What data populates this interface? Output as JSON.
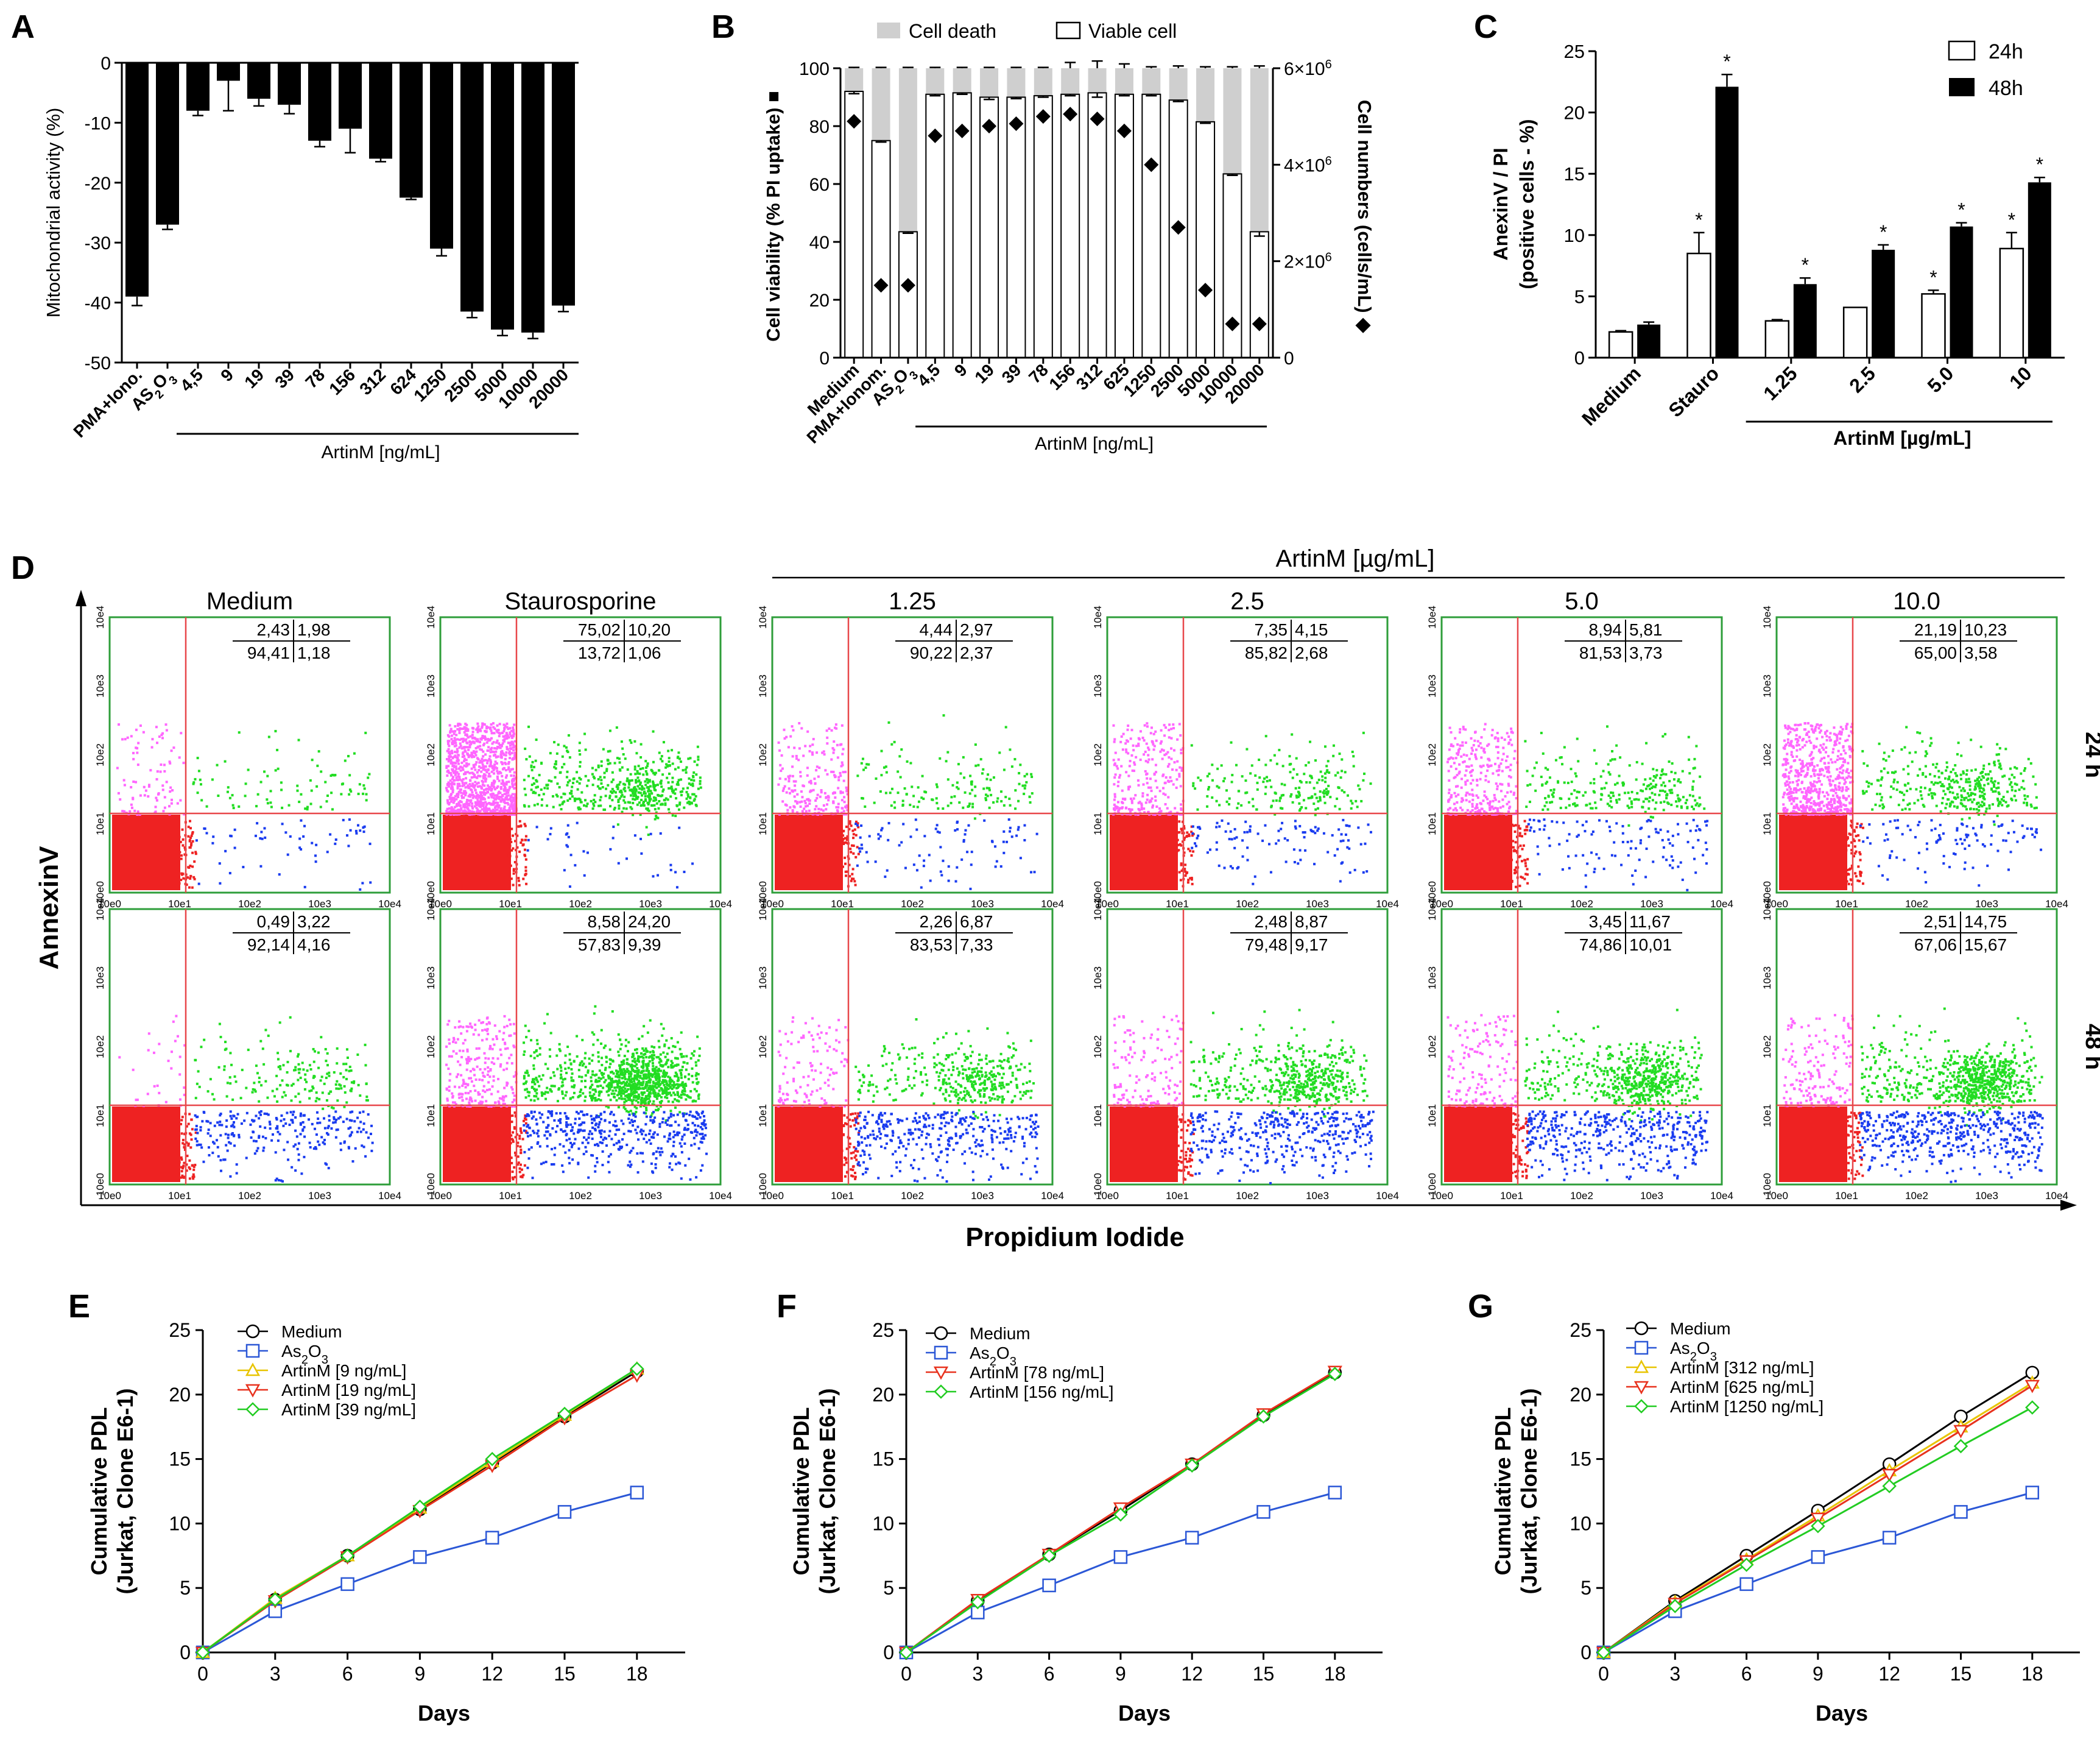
{
  "colors": {
    "black": "#000000",
    "grey": "#cfcfcf",
    "green_frame": "#2e9e3a",
    "red_gate": "#e8474a",
    "pink": "#ff66ff",
    "green_dots": "#22dd22",
    "blue_dots": "#1a3cf0",
    "red_dots": "#ee2222",
    "series_medium": "#000000",
    "series_as2o3": "#2b57d6",
    "series_1": "#e8c400",
    "series_2": "#e8321e",
    "series_3": "#22cc22"
  },
  "panels": {
    "A": "A",
    "B": "B",
    "C": "C",
    "D": "D",
    "E": "E",
    "F": "F",
    "G": "G"
  },
  "chart_data": [
    {
      "id": "A",
      "type": "bar",
      "ylabel": "Mitochondrial activity (%)",
      "ylim": [
        -50,
        0
      ],
      "yticks": [
        0,
        -10,
        -20,
        -30,
        -40,
        -50
      ],
      "categories": [
        "PMA+Iono.",
        "AS2O3",
        "4,5",
        "9",
        "19",
        "39",
        "78",
        "156",
        "312",
        "624",
        "1250",
        "2500",
        "5000",
        "10000",
        "20000"
      ],
      "category_as2o3": {
        "base": "AS",
        "sub": "2",
        "mid": "O",
        "sub2": "3"
      },
      "values": [
        -39,
        -27,
        -8,
        -3,
        -6,
        -7,
        -13,
        -11,
        -16,
        -22.5,
        -31,
        -41.5,
        -44.5,
        -45,
        -40.5
      ],
      "errors": [
        1.5,
        0.8,
        0.8,
        5,
        1.2,
        1.5,
        1,
        4,
        0.5,
        0.3,
        1.2,
        1,
        1,
        1,
        1
      ],
      "group_label": "ArtinM [ng/mL]"
    },
    {
      "id": "B",
      "type": "bar",
      "legend": [
        "Cell death",
        "Viable cell"
      ],
      "ylabel_left": "Cell viability (% PI uptake)",
      "ylabel_left_marker": "■",
      "ylabel_right": "Cell numbers (cells/mL)",
      "ylabel_right_marker": "◆",
      "ylim_left": [
        0,
        100
      ],
      "yticks_left": [
        0,
        20,
        40,
        60,
        80,
        100
      ],
      "ylim_right": [
        0,
        6000000
      ],
      "yticks_right": [
        {
          "v": 0,
          "base": "0",
          "exp": ""
        },
        {
          "v": 2000000,
          "base": "2×10",
          "exp": "6"
        },
        {
          "v": 4000000,
          "base": "4×10",
          "exp": "6"
        },
        {
          "v": 6000000,
          "base": "6×10",
          "exp": "6"
        }
      ],
      "categories": [
        "Medium",
        "PMA+Ionom.",
        "AS2O3",
        "4,5",
        "9",
        "19",
        "39",
        "78",
        "156",
        "312",
        "625",
        "1250",
        "2500",
        "5000",
        "10000",
        "20000"
      ],
      "viable": [
        92,
        75,
        43.5,
        91,
        91.5,
        90,
        90,
        90.5,
        91,
        91.5,
        91,
        91,
        89,
        81.5,
        63.5,
        43.5
      ],
      "viable_err": [
        0.8,
        0.5,
        0.5,
        0.5,
        0.5,
        0.8,
        0.5,
        0.5,
        0.5,
        1.5,
        0.5,
        0.5,
        0.5,
        0.5,
        0.5,
        1.5
      ],
      "death_err": [
        0.3,
        0.3,
        0.3,
        0.3,
        0.3,
        0.3,
        0.3,
        0.3,
        2,
        2.5,
        1.5,
        0.5,
        0.8,
        0.5,
        0.5,
        0.8
      ],
      "cell_numbers": [
        4900000,
        1500000,
        1500000,
        4600000,
        4700000,
        4800000,
        4850000,
        5000000,
        5050000,
        4950000,
        4700000,
        4000000,
        2700000,
        1400000,
        700000,
        700000
      ],
      "group_label": "ArtinM [ng/mL]"
    },
    {
      "id": "C",
      "type": "bar",
      "ylabel": [
        "AnexinV / PI",
        "(positive cells - %)"
      ],
      "ylim": [
        0,
        25
      ],
      "yticks": [
        0,
        5,
        10,
        15,
        20,
        25
      ],
      "legend": [
        "24h",
        "48h"
      ],
      "categories": [
        "Medium",
        "Stauro",
        "1.25",
        "2.5",
        "5.0",
        "10"
      ],
      "series": [
        {
          "name": "24h",
          "values": [
            2.1,
            8.5,
            3.0,
            4.1,
            5.2,
            8.9
          ],
          "errors": [
            0.1,
            1.7,
            0.1,
            0,
            0.3,
            1.3
          ]
        },
        {
          "name": "48h",
          "values": [
            2.7,
            22.1,
            6.0,
            8.8,
            10.7,
            14.3
          ],
          "errors": [
            0.2,
            1.0,
            0.5,
            0.4,
            0.3,
            0.4
          ]
        }
      ],
      "significance_24h": [
        "",
        "*",
        "",
        "",
        "*",
        "*"
      ],
      "significance_48h": [
        "",
        "*",
        "*",
        "*",
        "*",
        "*"
      ],
      "group_label": "ArtinM [µg/mL]"
    },
    {
      "id": "D",
      "type": "scatter",
      "header": "ArtinM [µg/mL]",
      "columns": [
        "Medium",
        "Staurosporine",
        "1.25",
        "2.5",
        "5.0",
        "10.0"
      ],
      "rows": [
        "24 h",
        "48 h"
      ],
      "xlabel": "Propidium Iodide",
      "ylabel": "AnnexinV",
      "tick_labels": [
        "10e0",
        "10e1",
        "10e2",
        "10e3",
        "10e4"
      ],
      "quadrants": [
        [
          [
            "2,43",
            "1,98",
            "94,41",
            "1,18"
          ],
          [
            "75,02",
            "10,20",
            "13,72",
            "1,06"
          ],
          [
            "4,44",
            "2,97",
            "90,22",
            "2,37"
          ],
          [
            "7,35",
            "4,15",
            "85,82",
            "2,68"
          ],
          [
            "8,94",
            "5,81",
            "81,53",
            "3,73"
          ],
          [
            "21,19",
            "10,23",
            "65,00",
            "3,58"
          ]
        ],
        [
          [
            "0,49",
            "3,22",
            "92,14",
            "4,16"
          ],
          [
            "8,58",
            "24,20",
            "57,83",
            "9,39"
          ],
          [
            "2,26",
            "6,87",
            "83,53",
            "7,33"
          ],
          [
            "2,48",
            "8,87",
            "79,48",
            "9,17"
          ],
          [
            "3,45",
            "11,67",
            "74,86",
            "10,01"
          ],
          [
            "2,51",
            "14,75",
            "67,06",
            "15,67"
          ]
        ]
      ]
    },
    {
      "id": "E",
      "type": "line",
      "xlabel": "Days",
      "ylabel": [
        "Cumulative PDL",
        "(Jurkat, Clone E6-1)"
      ],
      "x": [
        0,
        3,
        6,
        9,
        12,
        15,
        18
      ],
      "xlim": [
        0,
        20
      ],
      "ylim": [
        0,
        25
      ],
      "xticks": [
        0,
        3,
        6,
        9,
        12,
        15,
        18
      ],
      "yticks": [
        0,
        5,
        10,
        15,
        20,
        25
      ],
      "series": [
        {
          "name": "Medium",
          "marker": "circle",
          "values": [
            0,
            4.1,
            7.5,
            11.1,
            14.7,
            18.3,
            21.8
          ]
        },
        {
          "name": "As2O3",
          "marker": "square",
          "values": [
            0,
            3.2,
            5.3,
            7.4,
            8.9,
            10.9,
            12.4
          ]
        },
        {
          "name": "ArtinM [9 ng/mL]",
          "marker": "triangle-up",
          "values": [
            0,
            4.2,
            7.5,
            11.2,
            14.8,
            18.4,
            22.0
          ]
        },
        {
          "name": "ArtinM [19 ng/mL]",
          "marker": "triangle-down",
          "values": [
            0,
            4.0,
            7.4,
            11.0,
            14.5,
            18.2,
            21.5
          ]
        },
        {
          "name": "ArtinM [39 ng/mL]",
          "marker": "diamond",
          "values": [
            0,
            4.1,
            7.5,
            11.3,
            15.0,
            18.5,
            22.0
          ]
        }
      ]
    },
    {
      "id": "F",
      "type": "line",
      "xlabel": "Days",
      "ylabel": [
        "Cumulative PDL",
        "(Jurkat, Clone E6-1)"
      ],
      "x": [
        0,
        3,
        6,
        9,
        12,
        15,
        18
      ],
      "xlim": [
        0,
        20
      ],
      "ylim": [
        0,
        25
      ],
      "xticks": [
        0,
        3,
        6,
        9,
        12,
        15,
        18
      ],
      "yticks": [
        0,
        5,
        10,
        15,
        20,
        25
      ],
      "series": [
        {
          "name": "Medium",
          "marker": "circle",
          "values": [
            0,
            4.0,
            7.6,
            11.0,
            14.6,
            18.4,
            21.7
          ]
        },
        {
          "name": "As2O3",
          "marker": "square",
          "values": [
            0,
            3.1,
            5.2,
            7.4,
            8.9,
            10.9,
            12.4
          ]
        },
        {
          "name": "ArtinM [78 ng/mL]",
          "marker": "triangle-down",
          "values": [
            0,
            4.1,
            7.6,
            11.2,
            14.6,
            18.5,
            21.8
          ]
        },
        {
          "name": "ArtinM [156 ng/mL]",
          "marker": "diamond",
          "values": [
            0,
            3.9,
            7.5,
            10.7,
            14.5,
            18.3,
            21.6
          ]
        }
      ]
    },
    {
      "id": "G",
      "type": "line",
      "xlabel": "Days",
      "ylabel": [
        "Cumulative PDL",
        "(Jurkat, Clone E6-1)"
      ],
      "x": [
        0,
        3,
        6,
        9,
        12,
        15,
        18
      ],
      "xlim": [
        0,
        20
      ],
      "ylim": [
        0,
        25
      ],
      "xticks": [
        0,
        3,
        6,
        9,
        12,
        15,
        18
      ],
      "yticks": [
        0,
        5,
        10,
        15,
        20,
        25
      ],
      "series": [
        {
          "name": "Medium",
          "marker": "circle",
          "values": [
            0,
            4.0,
            7.5,
            11.0,
            14.6,
            18.3,
            21.7
          ]
        },
        {
          "name": "As2O3",
          "marker": "square",
          "values": [
            0,
            3.2,
            5.3,
            7.4,
            8.9,
            10.9,
            12.4
          ]
        },
        {
          "name": "ArtinM [312 ng/mL]",
          "marker": "triangle-up",
          "values": [
            0,
            3.9,
            7.2,
            10.6,
            14.1,
            17.5,
            20.9
          ]
        },
        {
          "name": "ArtinM [625 ng/mL]",
          "marker": "triangle-down",
          "values": [
            0,
            3.8,
            7.1,
            10.4,
            13.8,
            17.2,
            20.7
          ]
        },
        {
          "name": "ArtinM [1250 ng/mL]",
          "marker": "diamond",
          "values": [
            0,
            3.6,
            6.8,
            9.8,
            12.9,
            16.0,
            19.0
          ]
        }
      ]
    }
  ]
}
